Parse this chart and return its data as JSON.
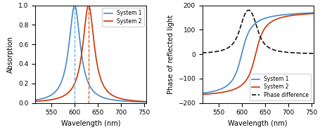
{
  "omega1": 600,
  "omega2": 630,
  "gamma1": 30,
  "gamma2": 30,
  "xmin": 515,
  "xmax": 755,
  "left_ylim": [
    0,
    1.0
  ],
  "right_ylim": [
    -200,
    200
  ],
  "left_yticks": [
    0,
    0.2,
    0.4,
    0.6,
    0.8,
    1.0
  ],
  "right_yticks": [
    -200,
    -100,
    0,
    100,
    200
  ],
  "xticks": [
    550,
    600,
    650,
    700,
    750
  ],
  "xlabel": "Wavelength (nm)",
  "left_ylabel": "Absorption",
  "right_ylabel": "Phase of reflected light",
  "color_sys1": "#4488CC",
  "color_sys2": "#CC3300",
  "color_phase_diff": "#111111",
  "dashed_color1": "#66AADD",
  "dashed_color2": "#DD5522",
  "legend_entries_left": [
    "System 1",
    "System 2"
  ],
  "legend_entries_right": [
    "System 1",
    "System 2",
    "Phase difference"
  ],
  "figsize": [
    4.55,
    1.88
  ],
  "dpi": 100
}
